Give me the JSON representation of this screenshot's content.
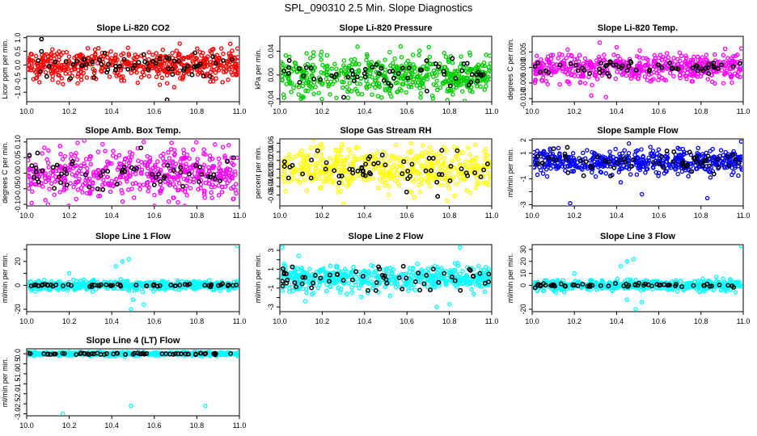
{
  "title": "SPL_090310  2.5 Min. Slope Diagnostics",
  "chart_data": [
    {
      "type": "scatter",
      "title": "Slope Li-820 CO2",
      "ylabel": "Licor ppm per min.",
      "xlim": [
        10.0,
        11.0
      ],
      "ylim": [
        -1.35,
        1.05
      ],
      "xticks": [
        10.0,
        10.2,
        10.4,
        10.6,
        10.8,
        11.0
      ],
      "xtick_labels": [
        "10.0",
        "10.2",
        "10.4",
        "10.6",
        "10.8",
        "11.0"
      ],
      "yticks": [
        -1.0,
        -0.5,
        0.0,
        0.5,
        1.0
      ],
      "ytick_labels": [
        "-1.0",
        "-0.5",
        "0.0",
        "0.5",
        "1.0"
      ],
      "color": "#ff0000",
      "black_color": "#000000",
      "center": 0.0,
      "spread": 0.28,
      "black_spread": 0.22,
      "n_colored": 520,
      "n_black": 60,
      "outliers": [
        {
          "x": 10.07,
          "y": 0.95
        },
        {
          "x": 10.66,
          "y": -1.28
        },
        {
          "x": 10.2,
          "y": -0.55
        },
        {
          "x": 10.89,
          "y": -0.5
        }
      ]
    },
    {
      "type": "scatter",
      "title": "Slope Li-820 Pressure",
      "ylabel": "kPa per min.",
      "xlim": [
        10.0,
        11.0
      ],
      "ylim": [
        -0.045,
        0.065
      ],
      "xticks": [
        10.0,
        10.2,
        10.4,
        10.6,
        10.8,
        11.0
      ],
      "xtick_labels": [
        "10.0",
        "10.2",
        "10.4",
        "10.6",
        "10.8",
        "11.0"
      ],
      "yticks": [
        -0.04,
        0.0,
        0.04
      ],
      "ytick_labels": [
        "-0.04",
        "0.00",
        "0.04"
      ],
      "color": "#00cc00",
      "black_color": "#000000",
      "center": 0.0,
      "spread": 0.017,
      "black_spread": 0.013,
      "n_colored": 520,
      "n_black": 60,
      "outliers": [
        {
          "x": 10.1,
          "y": -0.04
        },
        {
          "x": 10.48,
          "y": -0.038
        },
        {
          "x": 10.72,
          "y": -0.035
        },
        {
          "x": 10.57,
          "y": 0.048
        }
      ]
    },
    {
      "type": "scatter",
      "title": "Slope Li-820 Temp.",
      "ylabel": "degrees C per min.",
      "xlim": [
        10.0,
        11.0
      ],
      "ylim": [
        -0.011,
        0.01
      ],
      "xticks": [
        10.0,
        10.2,
        10.4,
        10.6,
        10.8,
        11.0
      ],
      "xtick_labels": [
        "10.0",
        "10.2",
        "10.4",
        "10.6",
        "10.8",
        "11.0"
      ],
      "yticks": [
        -0.01,
        -0.005,
        0.0,
        0.005
      ],
      "ytick_labels": [
        "-0.010",
        "-0.005",
        "0.000",
        "0.005"
      ],
      "color": "#ff00ff",
      "black_color": "#000000",
      "center": 0.0,
      "spread": 0.0022,
      "black_spread": 0.0012,
      "n_colored": 520,
      "n_black": 60,
      "outliers": [
        {
          "x": 10.32,
          "y": 0.008
        },
        {
          "x": 10.35,
          "y": -0.0095
        },
        {
          "x": 10.4,
          "y": 0.0065
        },
        {
          "x": 10.28,
          "y": -0.009
        }
      ]
    },
    {
      "type": "scatter",
      "title": "Slope Amb. Box Temp.",
      "ylabel": "degrees C per min.",
      "xlim": [
        10.0,
        11.0
      ],
      "ylim": [
        -0.105,
        0.11
      ],
      "xticks": [
        10.0,
        10.2,
        10.4,
        10.6,
        10.8,
        11.0
      ],
      "xtick_labels": [
        "10.0",
        "10.2",
        "10.4",
        "10.6",
        "10.8",
        "11.0"
      ],
      "yticks": [
        -0.1,
        -0.05,
        0.0,
        0.05,
        0.1
      ],
      "ytick_labels": [
        "-0.10",
        "-0.05",
        "0.00",
        "0.05",
        "0.10"
      ],
      "color": "#ff00ff",
      "black_color": "#000000",
      "center": 0.0,
      "spread": 0.04,
      "black_spread": 0.03,
      "n_colored": 520,
      "n_black": 60,
      "outliers": [
        {
          "x": 10.55,
          "y": 0.1
        },
        {
          "x": 10.95,
          "y": 0.09
        },
        {
          "x": 10.1,
          "y": -0.1
        }
      ]
    },
    {
      "type": "scatter",
      "title": "Slope Gas Stream RH",
      "ylabel": "percent per min.",
      "xlim": [
        10.0,
        11.0
      ],
      "ylim": [
        -0.085,
        0.07
      ],
      "xticks": [
        10.0,
        10.2,
        10.4,
        10.6,
        10.8,
        11.0
      ],
      "xtick_labels": [
        "10.0",
        "10.2",
        "10.4",
        "10.6",
        "10.8",
        "11.0"
      ],
      "yticks": [
        -0.06,
        -0.04,
        -0.02,
        0.0,
        0.02,
        0.04,
        0.06
      ],
      "ytick_labels": [
        "-0.06",
        "-0.04",
        "-0.02",
        "0.00",
        "0.02",
        "0.04",
        "0.06"
      ],
      "color": "#ffff00",
      "black_color": "#000000",
      "center": 0.0,
      "spread": 0.025,
      "black_spread": 0.022,
      "n_colored": 520,
      "n_black": 60,
      "outliers": [
        {
          "x": 10.3,
          "y": -0.08
        },
        {
          "x": 10.62,
          "y": 0.06
        }
      ]
    },
    {
      "type": "scatter",
      "title": "Slope Sample Flow",
      "ylabel": "ml/min per min.",
      "xlim": [
        10.0,
        11.0
      ],
      "ylim": [
        -3.1,
        2.1
      ],
      "xticks": [
        10.0,
        10.2,
        10.4,
        10.6,
        10.8,
        11.0
      ],
      "xtick_labels": [
        "10.0",
        "10.2",
        "10.4",
        "10.6",
        "10.8",
        "11.0"
      ],
      "yticks": [
        -3,
        -2,
        -1,
        0,
        1,
        2
      ],
      "ytick_labels": [
        "-3",
        "",
        "-1",
        "",
        "1",
        "2"
      ],
      "color": "#0000ff",
      "black_color": "#000000",
      "center": 0.3,
      "spread": 0.45,
      "black_spread": 0.45,
      "n_colored": 520,
      "n_black": 60,
      "outliers": [
        {
          "x": 10.18,
          "y": -2.9
        },
        {
          "x": 10.52,
          "y": -2.2
        },
        {
          "x": 10.83,
          "y": -2.5
        },
        {
          "x": 10.99,
          "y": 1.9
        }
      ]
    },
    {
      "type": "scatter",
      "title": "Slope Line 1 Flow",
      "ylabel": "ml/min per min.",
      "xlim": [
        10.0,
        11.0
      ],
      "ylim": [
        -22,
        34
      ],
      "xticks": [
        10.0,
        10.2,
        10.4,
        10.6,
        10.8,
        11.0
      ],
      "xtick_labels": [
        "10.0",
        "10.2",
        "10.4",
        "10.6",
        "10.8",
        "11.0"
      ],
      "yticks": [
        -20,
        0,
        10,
        20,
        30
      ],
      "ytick_labels": [
        "-20",
        "0",
        "",
        "20",
        ""
      ],
      "color": "#00ffff",
      "black_color": "#000000",
      "center": 0.0,
      "spread": 2.0,
      "black_spread": 0.5,
      "n_colored": 520,
      "n_black": 60,
      "outliers": [
        {
          "x": 10.45,
          "y": 20
        },
        {
          "x": 10.48,
          "y": 22
        },
        {
          "x": 10.42,
          "y": 16
        },
        {
          "x": 10.5,
          "y": -12
        },
        {
          "x": 10.49,
          "y": -20
        },
        {
          "x": 10.55,
          "y": -16
        },
        {
          "x": 10.99,
          "y": 33
        },
        {
          "x": 10.2,
          "y": 10
        }
      ]
    },
    {
      "type": "scatter",
      "title": "Slope Line 2 Flow",
      "ylabel": "ml/min per min.",
      "xlim": [
        10.0,
        11.0
      ],
      "ylim": [
        -3.5,
        3.6
      ],
      "xticks": [
        10.0,
        10.2,
        10.4,
        10.6,
        10.8,
        11.0
      ],
      "xtick_labels": [
        "10.0",
        "10.2",
        "10.4",
        "10.6",
        "10.8",
        "11.0"
      ],
      "yticks": [
        -3,
        -2,
        -1,
        0,
        1,
        2,
        3
      ],
      "ytick_labels": [
        "-3",
        "",
        "-1",
        "",
        "1",
        "",
        "3"
      ],
      "color": "#00ffff",
      "black_color": "#000000",
      "center": 0.0,
      "spread": 0.65,
      "black_spread": 0.7,
      "n_colored": 520,
      "n_black": 60,
      "outliers": [
        {
          "x": 10.01,
          "y": 3.3
        },
        {
          "x": 10.85,
          "y": 3.3
        },
        {
          "x": 10.74,
          "y": -3.0
        },
        {
          "x": 10.8,
          "y": -2.7
        },
        {
          "x": 10.12,
          "y": -2.4
        }
      ]
    },
    {
      "type": "scatter",
      "title": "Slope Line 3 Flow",
      "ylabel": "ml/min per min.",
      "xlim": [
        10.0,
        11.0
      ],
      "ylim": [
        -22,
        34
      ],
      "xticks": [
        10.0,
        10.2,
        10.4,
        10.6,
        10.8,
        11.0
      ],
      "xtick_labels": [
        "10.0",
        "10.2",
        "10.4",
        "10.6",
        "10.8",
        "11.0"
      ],
      "yticks": [
        -20,
        0,
        10,
        20,
        30
      ],
      "ytick_labels": [
        "-20",
        "0",
        "10",
        "20",
        "30"
      ],
      "color": "#00ffff",
      "black_color": "#000000",
      "center": 0.0,
      "spread": 2.2,
      "black_spread": 0.8,
      "n_colored": 520,
      "n_black": 60,
      "outliers": [
        {
          "x": 10.45,
          "y": 20
        },
        {
          "x": 10.48,
          "y": 22
        },
        {
          "x": 10.42,
          "y": 16
        },
        {
          "x": 10.45,
          "y": -12
        },
        {
          "x": 10.49,
          "y": -20
        },
        {
          "x": 10.52,
          "y": -14
        },
        {
          "x": 10.99,
          "y": 33
        },
        {
          "x": 10.2,
          "y": 10
        }
      ]
    },
    {
      "type": "scatter",
      "title": "Slope Line 4 (LT) Flow",
      "ylabel": "ml/min per min.",
      "xlim": [
        10.0,
        11.0
      ],
      "ylim": [
        -3.1,
        0.25
      ],
      "xticks": [
        10.0,
        10.2,
        10.4,
        10.6,
        10.8,
        11.0
      ],
      "xtick_labels": [
        "10.0",
        "10.2",
        "10.4",
        "10.6",
        "10.8",
        "11.0"
      ],
      "yticks": [
        -3.0,
        -2.5,
        -2.0,
        -1.5,
        -1.0,
        -0.5,
        0.0
      ],
      "ytick_labels": [
        "-3.0",
        "-2.5",
        "-2.0",
        "-1.5",
        "-1.0",
        "-0.5",
        "0.0"
      ],
      "color": "#00ffff",
      "black_color": "#000000",
      "center": 0.0,
      "spread": 0.04,
      "black_spread": 0.02,
      "n_colored": 520,
      "n_black": 60,
      "outliers": [
        {
          "x": 10.17,
          "y": -3.0
        },
        {
          "x": 10.49,
          "y": -2.6
        },
        {
          "x": 10.84,
          "y": -2.6
        }
      ]
    }
  ]
}
